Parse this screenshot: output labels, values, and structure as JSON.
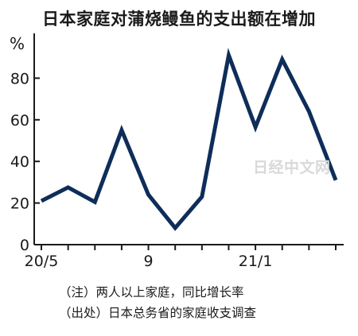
{
  "watermark": "日经中文网",
  "notes": {
    "note": "（注）两人以上家庭，同比增长率",
    "source": "（出处）日本总务省的家庭收支调查"
  },
  "colors": {
    "line": "#0e2d59",
    "axis": "#1a1a1a"
  },
  "chart_data": {
    "type": "line",
    "title": "日本家庭对蒲烧鳗鱼的支出额在增加",
    "ylabel": "%",
    "xlabel": "",
    "ylim": [
      0,
      100
    ],
    "yticks": [
      0,
      20,
      40,
      60,
      80
    ],
    "x_tick_labels": [
      {
        "index": 0,
        "label": "20/5"
      },
      {
        "index": 4,
        "label": "9"
      },
      {
        "index": 8,
        "label": "21/1"
      }
    ],
    "grid": false,
    "series": [
      {
        "values": [
          21,
          27.5,
          20.5,
          55,
          24,
          8,
          23,
          91,
          56.5,
          89,
          64,
          31
        ]
      }
    ]
  }
}
